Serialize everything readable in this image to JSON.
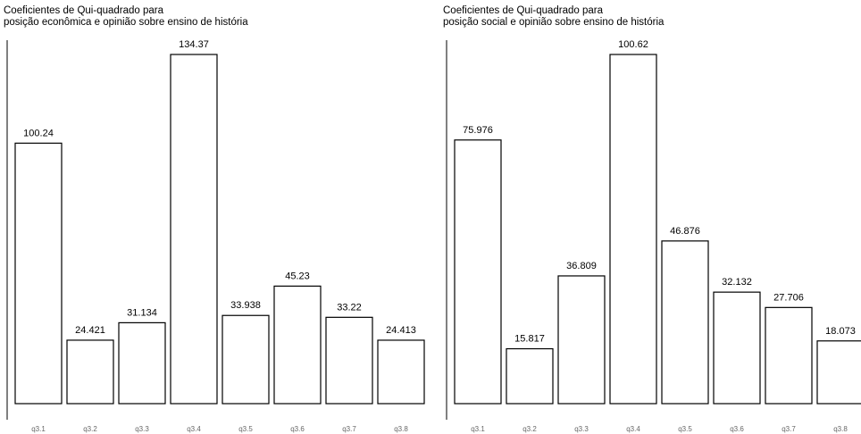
{
  "chart_data": [
    {
      "type": "bar",
      "title_lines": [
        "Coeficientes de Qui-quadrado para",
        "posição econômica e opinião sobre ensino de história"
      ],
      "categories": [
        "q3.1",
        "q3.2",
        "q3.3",
        "q3.4",
        "q3.5",
        "q3.6",
        "q3.7",
        "q3.8"
      ],
      "values": [
        100.24,
        24.421,
        31.134,
        134.37,
        33.938,
        45.23,
        33.22,
        24.413
      ],
      "value_labels": [
        "100.24",
        "24.421",
        "31.134",
        "134.37",
        "33.938",
        "45.23",
        "33.22",
        "24.413"
      ],
      "ylim": [
        0,
        134.37
      ],
      "grid": false,
      "bar_fill": "#ffffff",
      "bar_stroke": "#000000"
    },
    {
      "type": "bar",
      "title_lines": [
        "Coeficientes de Qui-quadrado para",
        "posição social e opinião sobre ensino de história"
      ],
      "categories": [
        "q3.1",
        "q3.2",
        "q3.3",
        "q3.4",
        "q3.5",
        "q3.6",
        "q3.7",
        "q3.8"
      ],
      "values": [
        75.976,
        15.817,
        36.809,
        100.62,
        46.876,
        32.132,
        27.706,
        18.073
      ],
      "value_labels": [
        "75.976",
        "15.817",
        "36.809",
        "100.62",
        "46.876",
        "32.132",
        "27.706",
        "18.073"
      ],
      "ylim": [
        0,
        100.62
      ],
      "grid": false,
      "bar_fill": "#ffffff",
      "bar_stroke": "#000000"
    }
  ]
}
